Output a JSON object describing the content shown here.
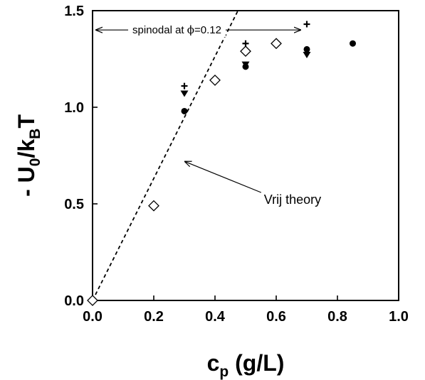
{
  "chart_data": {
    "type": "scatter",
    "title": "",
    "xlabel": {
      "main": "c",
      "sub": "p",
      "unit": " (g/L)"
    },
    "ylabel": {
      "prefix": "- U",
      "sub0": "0",
      "mid": "/k",
      "sub1": "B",
      "suffix": "T"
    },
    "xlim": [
      0,
      1.0
    ],
    "ylim": [
      0,
      1.5
    ],
    "x_ticks": [
      "0.0",
      "0.2",
      "0.4",
      "0.6",
      "0.8",
      "1.0"
    ],
    "y_ticks": [
      "0.0",
      "0.5",
      "1.0",
      "1.5"
    ],
    "grid": false,
    "series": [
      {
        "marker": "filled-circle",
        "points": [
          [
            0.0,
            0.0
          ],
          [
            0.3,
            0.98
          ],
          [
            0.5,
            1.21
          ],
          [
            0.7,
            1.3
          ],
          [
            0.85,
            1.33
          ]
        ]
      },
      {
        "marker": "open-diamond",
        "points": [
          [
            0.0,
            0.0
          ],
          [
            0.2,
            0.49
          ],
          [
            0.4,
            1.14
          ],
          [
            0.5,
            1.29
          ],
          [
            0.6,
            1.33
          ]
        ]
      },
      {
        "marker": "down-triangle",
        "points": [
          [
            0.3,
            1.07
          ],
          [
            0.5,
            1.22
          ],
          [
            0.7,
            1.27
          ]
        ]
      },
      {
        "marker": "plus",
        "points": [
          [
            0.3,
            1.11
          ],
          [
            0.5,
            1.33
          ],
          [
            0.7,
            1.43
          ]
        ]
      }
    ],
    "theory_line": {
      "label": "Vrij theory",
      "points": [
        [
          0.0,
          0.0
        ],
        [
          0.475,
          1.5
        ]
      ]
    },
    "annotations": {
      "spinodal": {
        "text_before": "spinodal at ",
        "phi": "ϕ",
        "text_after": "=0.12",
        "x_start": 0.0,
        "x_end": 0.7,
        "y": 1.4
      },
      "vrij": {
        "text": "Vrij theory",
        "text_at": [
          0.56,
          0.5
        ],
        "arrow_to": [
          0.3,
          0.72
        ]
      }
    }
  }
}
